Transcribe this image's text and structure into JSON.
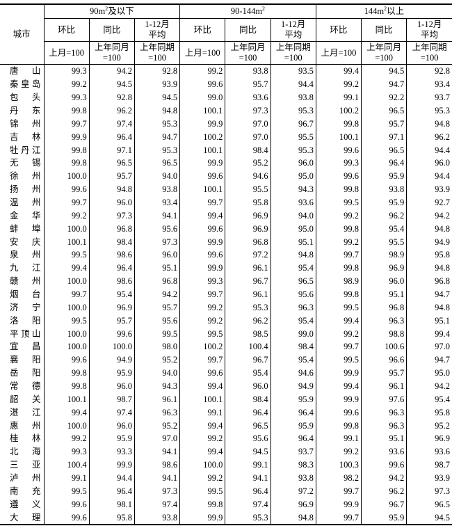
{
  "header": {
    "city_label": "城市",
    "groups": [
      {
        "pre": "90m",
        "sup": "2",
        "post": "及以下"
      },
      {
        "pre": "90-144m",
        "sup": "2",
        "post": ""
      },
      {
        "pre": "144m",
        "sup": "2",
        "post": "以上"
      }
    ],
    "sub": [
      {
        "line1": "环比",
        "line2": ""
      },
      {
        "line1": "同比",
        "line2": ""
      },
      {
        "line1": "1-12月",
        "line2": "平均"
      }
    ],
    "base": [
      {
        "line1": "上月=100",
        "line2": ""
      },
      {
        "line1": "上年同月",
        "line2": "=100"
      },
      {
        "line1": "上年同期",
        "line2": "=100"
      }
    ]
  },
  "rows": [
    [
      "唐山",
      "99.3",
      "94.2",
      "92.8",
      "99.2",
      "93.8",
      "93.5",
      "99.4",
      "94.5",
      "92.8"
    ],
    [
      "秦皇岛",
      "99.2",
      "94.5",
      "93.9",
      "99.6",
      "95.7",
      "94.4",
      "99.2",
      "94.7",
      "93.4"
    ],
    [
      "包头",
      "99.3",
      "92.8",
      "94.5",
      "99.0",
      "93.6",
      "93.8",
      "99.1",
      "92.2",
      "93.7"
    ],
    [
      "丹东",
      "99.8",
      "96.2",
      "94.8",
      "100.1",
      "97.3",
      "95.3",
      "100.2",
      "96.5",
      "95.3"
    ],
    [
      "锦州",
      "99.7",
      "97.4",
      "95.3",
      "99.9",
      "97.0",
      "96.7",
      "99.8",
      "95.7",
      "94.8"
    ],
    [
      "吉林",
      "99.9",
      "96.4",
      "94.7",
      "100.2",
      "97.0",
      "95.5",
      "100.1",
      "97.1",
      "96.2"
    ],
    [
      "牡丹江",
      "99.8",
      "97.1",
      "95.3",
      "100.1",
      "98.4",
      "95.3",
      "99.6",
      "96.5",
      "94.4"
    ],
    [
      "无锡",
      "99.8",
      "96.5",
      "96.5",
      "99.9",
      "95.2",
      "96.0",
      "99.3",
      "96.4",
      "96.0"
    ],
    [
      "徐州",
      "100.0",
      "95.7",
      "94.0",
      "99.6",
      "94.6",
      "95.0",
      "99.6",
      "95.9",
      "94.4"
    ],
    [
      "扬州",
      "99.6",
      "94.8",
      "93.8",
      "100.1",
      "95.5",
      "94.3",
      "99.8",
      "93.8",
      "93.9"
    ],
    [
      "温州",
      "99.7",
      "96.0",
      "93.4",
      "99.7",
      "95.8",
      "93.6",
      "99.5",
      "95.9",
      "92.7"
    ],
    [
      "金华",
      "99.2",
      "97.3",
      "94.1",
      "99.4",
      "96.9",
      "94.0",
      "99.2",
      "96.2",
      "94.2"
    ],
    [
      "蚌埠",
      "100.0",
      "96.8",
      "95.6",
      "99.6",
      "96.9",
      "95.0",
      "99.8",
      "95.4",
      "94.8"
    ],
    [
      "安庆",
      "100.1",
      "98.4",
      "97.3",
      "99.9",
      "96.8",
      "95.1",
      "99.2",
      "95.5",
      "94.9"
    ],
    [
      "泉州",
      "99.5",
      "98.6",
      "96.0",
      "99.6",
      "97.2",
      "94.8",
      "99.7",
      "98.9",
      "95.8"
    ],
    [
      "九江",
      "99.4",
      "96.4",
      "95.1",
      "99.9",
      "96.1",
      "95.4",
      "99.8",
      "96.9",
      "94.8"
    ],
    [
      "赣州",
      "100.0",
      "98.6",
      "96.8",
      "99.3",
      "96.7",
      "96.5",
      "98.9",
      "96.0",
      "96.8"
    ],
    [
      "烟台",
      "99.7",
      "95.4",
      "94.2",
      "99.7",
      "96.1",
      "95.6",
      "99.8",
      "95.1",
      "94.7"
    ],
    [
      "济宁",
      "100.0",
      "96.9",
      "95.7",
      "99.2",
      "95.3",
      "96.3",
      "99.5",
      "96.8",
      "94.8"
    ],
    [
      "洛阳",
      "99.5",
      "95.7",
      "95.6",
      "99.2",
      "96.2",
      "95.4",
      "99.4",
      "96.3",
      "95.1"
    ],
    [
      "平顶山",
      "100.0",
      "99.6",
      "99.5",
      "99.5",
      "98.5",
      "99.0",
      "99.2",
      "98.8",
      "99.4"
    ],
    [
      "宜昌",
      "100.0",
      "100.0",
      "98.0",
      "100.2",
      "100.4",
      "98.4",
      "99.7",
      "100.6",
      "97.0"
    ],
    [
      "襄阳",
      "99.6",
      "94.9",
      "95.2",
      "99.7",
      "96.7",
      "95.4",
      "99.5",
      "96.6",
      "94.7"
    ],
    [
      "岳阳",
      "99.8",
      "95.9",
      "94.0",
      "99.6",
      "95.4",
      "94.6",
      "99.9",
      "95.7",
      "95.0"
    ],
    [
      "常德",
      "99.8",
      "96.0",
      "94.3",
      "99.4",
      "96.0",
      "94.9",
      "99.4",
      "96.1",
      "94.2"
    ],
    [
      "韶关",
      "100.1",
      "98.7",
      "96.1",
      "100.1",
      "98.4",
      "95.9",
      "99.9",
      "97.6",
      "95.4"
    ],
    [
      "湛江",
      "99.4",
      "97.4",
      "96.3",
      "99.1",
      "96.4",
      "96.4",
      "99.6",
      "96.3",
      "95.8"
    ],
    [
      "惠州",
      "100.0",
      "96.0",
      "95.2",
      "99.4",
      "96.5",
      "95.9",
      "99.8",
      "96.3",
      "95.2"
    ],
    [
      "桂林",
      "99.2",
      "95.9",
      "97.0",
      "99.2",
      "95.6",
      "96.4",
      "99.1",
      "95.1",
      "96.9"
    ],
    [
      "北海",
      "99.3",
      "93.3",
      "94.1",
      "99.4",
      "94.5",
      "93.7",
      "99.2",
      "93.6",
      "93.6"
    ],
    [
      "三亚",
      "100.4",
      "99.9",
      "98.6",
      "100.0",
      "99.1",
      "98.3",
      "100.3",
      "99.6",
      "98.7"
    ],
    [
      "泸州",
      "99.1",
      "94.4",
      "94.1",
      "99.2",
      "94.1",
      "93.8",
      "98.2",
      "94.2",
      "93.9"
    ],
    [
      "南充",
      "99.5",
      "96.4",
      "97.3",
      "99.5",
      "96.4",
      "97.2",
      "99.7",
      "96.2",
      "97.3"
    ],
    [
      "遵义",
      "99.6",
      "98.1",
      "97.4",
      "99.8",
      "97.4",
      "96.9",
      "99.9",
      "96.7",
      "96.5"
    ],
    [
      "大理",
      "99.6",
      "95.8",
      "93.8",
      "99.9",
      "95.3",
      "94.8",
      "99.7",
      "95.9",
      "94.5"
    ]
  ]
}
